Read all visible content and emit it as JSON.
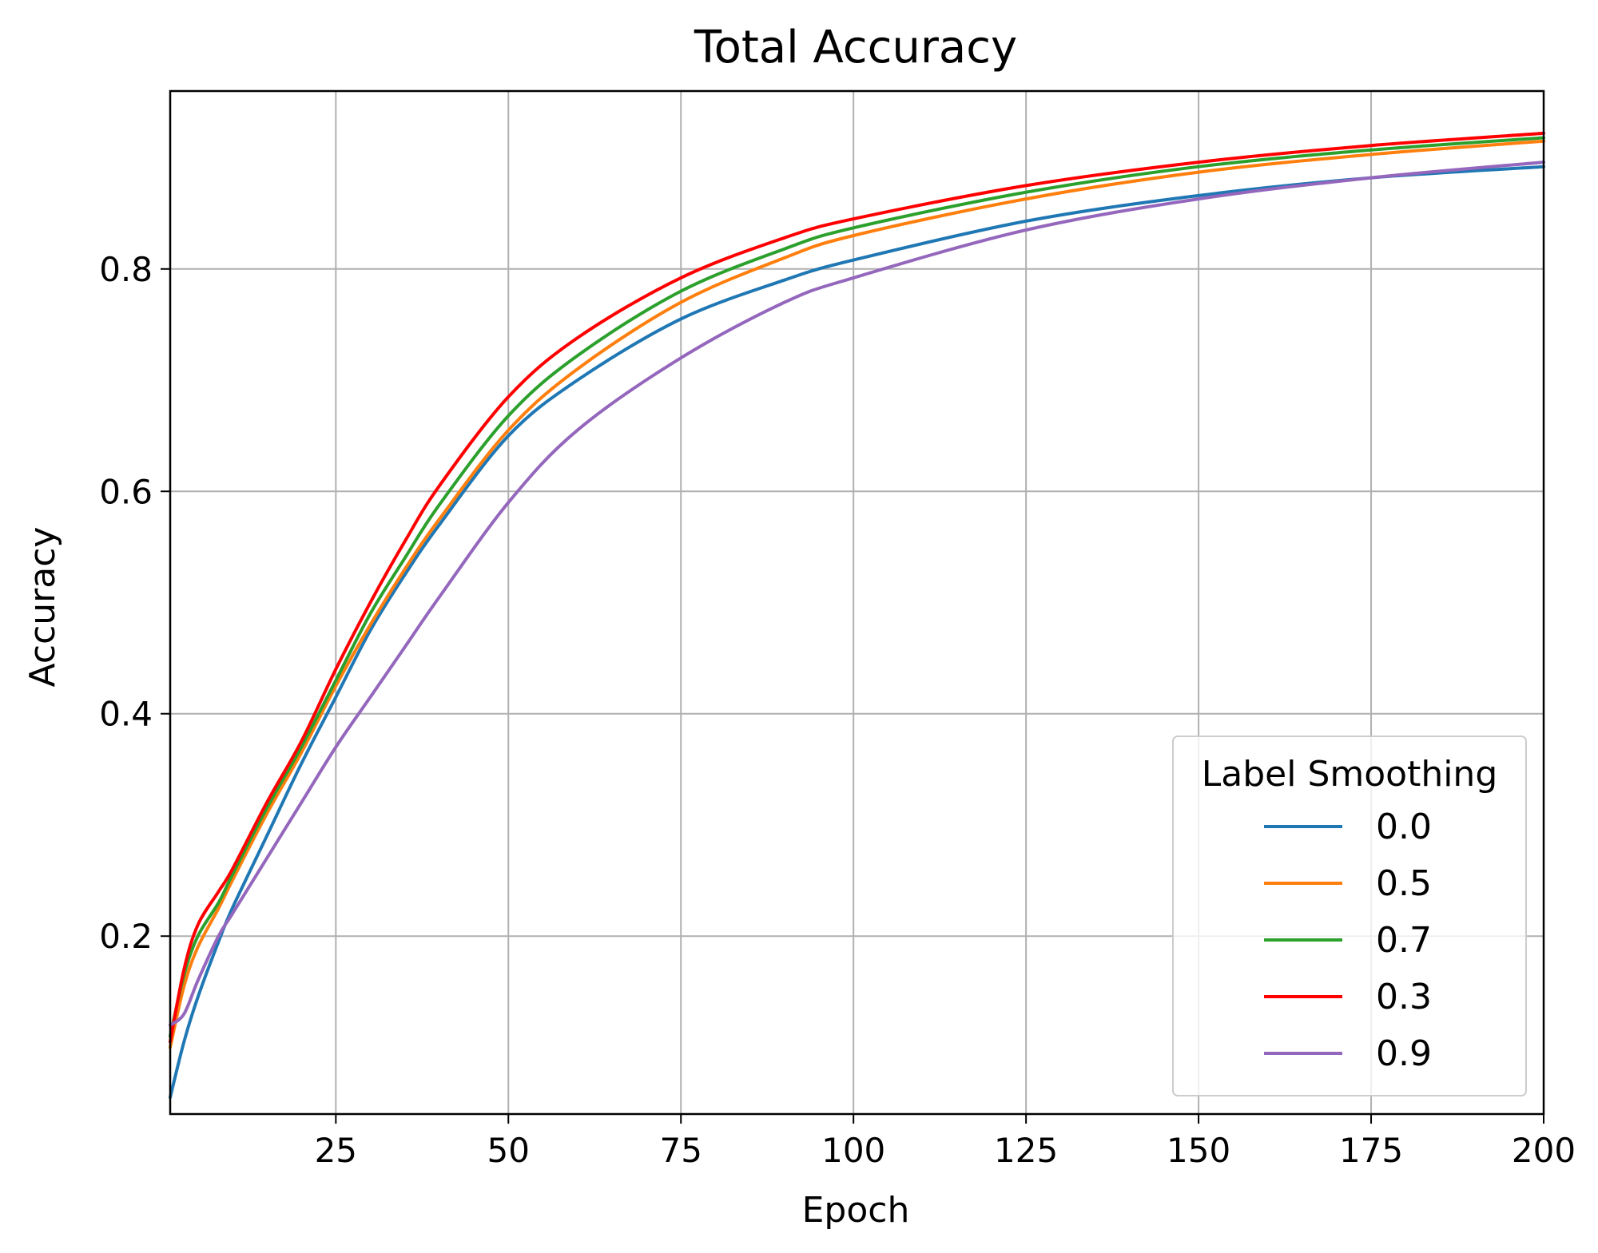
{
  "chart_data": {
    "type": "line",
    "title": "Total Accuracy",
    "xlabel": "Epoch",
    "ylabel": "Accuracy",
    "xlim": [
      1,
      200
    ],
    "ylim": [
      0.04,
      0.96
    ],
    "xticks": [
      25,
      50,
      75,
      100,
      125,
      150,
      175,
      200
    ],
    "yticks": [
      0.2,
      0.4,
      0.6,
      0.8
    ],
    "grid": true,
    "legend": {
      "title": "Label Smoothing",
      "placement": "lower-right"
    },
    "series": [
      {
        "name": "0.0",
        "color": "#1f77b4",
        "x": [
          1,
          3,
          5,
          8,
          10,
          15,
          20,
          25,
          30,
          35,
          40,
          50,
          60,
          75,
          90,
          100,
          125,
          150,
          175,
          200
        ],
        "y": [
          0.055,
          0.105,
          0.145,
          0.195,
          0.225,
          0.29,
          0.355,
          0.415,
          0.475,
          0.525,
          0.57,
          0.65,
          0.7,
          0.755,
          0.79,
          0.808,
          0.843,
          0.866,
          0.882,
          0.892
        ]
      },
      {
        "name": "0.5",
        "color": "#ff7f0e",
        "x": [
          1,
          3,
          5,
          8,
          10,
          15,
          20,
          25,
          30,
          35,
          40,
          50,
          60,
          75,
          90,
          100,
          125,
          150,
          175,
          200
        ],
        "y": [
          0.1,
          0.155,
          0.19,
          0.225,
          0.25,
          0.31,
          0.365,
          0.425,
          0.48,
          0.53,
          0.575,
          0.655,
          0.71,
          0.77,
          0.81,
          0.83,
          0.863,
          0.887,
          0.903,
          0.915
        ]
      },
      {
        "name": "0.7",
        "color": "#2ca02c",
        "x": [
          1,
          3,
          5,
          8,
          10,
          15,
          20,
          25,
          30,
          35,
          40,
          50,
          60,
          75,
          90,
          100,
          125,
          150,
          175,
          200
        ],
        "y": [
          0.11,
          0.165,
          0.2,
          0.23,
          0.255,
          0.315,
          0.37,
          0.43,
          0.49,
          0.54,
          0.588,
          0.668,
          0.722,
          0.78,
          0.818,
          0.837,
          0.869,
          0.892,
          0.907,
          0.918
        ]
      },
      {
        "name": "0.3",
        "color": "#ff0000",
        "x": [
          1,
          3,
          5,
          8,
          10,
          15,
          20,
          25,
          30,
          35,
          40,
          50,
          60,
          75,
          90,
          100,
          125,
          150,
          175,
          200
        ],
        "y": [
          0.105,
          0.17,
          0.21,
          0.24,
          0.26,
          0.32,
          0.375,
          0.44,
          0.5,
          0.555,
          0.605,
          0.685,
          0.738,
          0.792,
          0.828,
          0.845,
          0.875,
          0.896,
          0.911,
          0.922
        ]
      },
      {
        "name": "0.9",
        "color": "#9467bd",
        "x": [
          1,
          3,
          5,
          8,
          10,
          15,
          20,
          25,
          30,
          35,
          40,
          50,
          60,
          75,
          90,
          100,
          125,
          150,
          175,
          200
        ],
        "y": [
          0.12,
          0.13,
          0.16,
          0.2,
          0.22,
          0.27,
          0.32,
          0.37,
          0.415,
          0.46,
          0.505,
          0.59,
          0.655,
          0.72,
          0.77,
          0.792,
          0.835,
          0.863,
          0.882,
          0.896
        ]
      }
    ]
  }
}
